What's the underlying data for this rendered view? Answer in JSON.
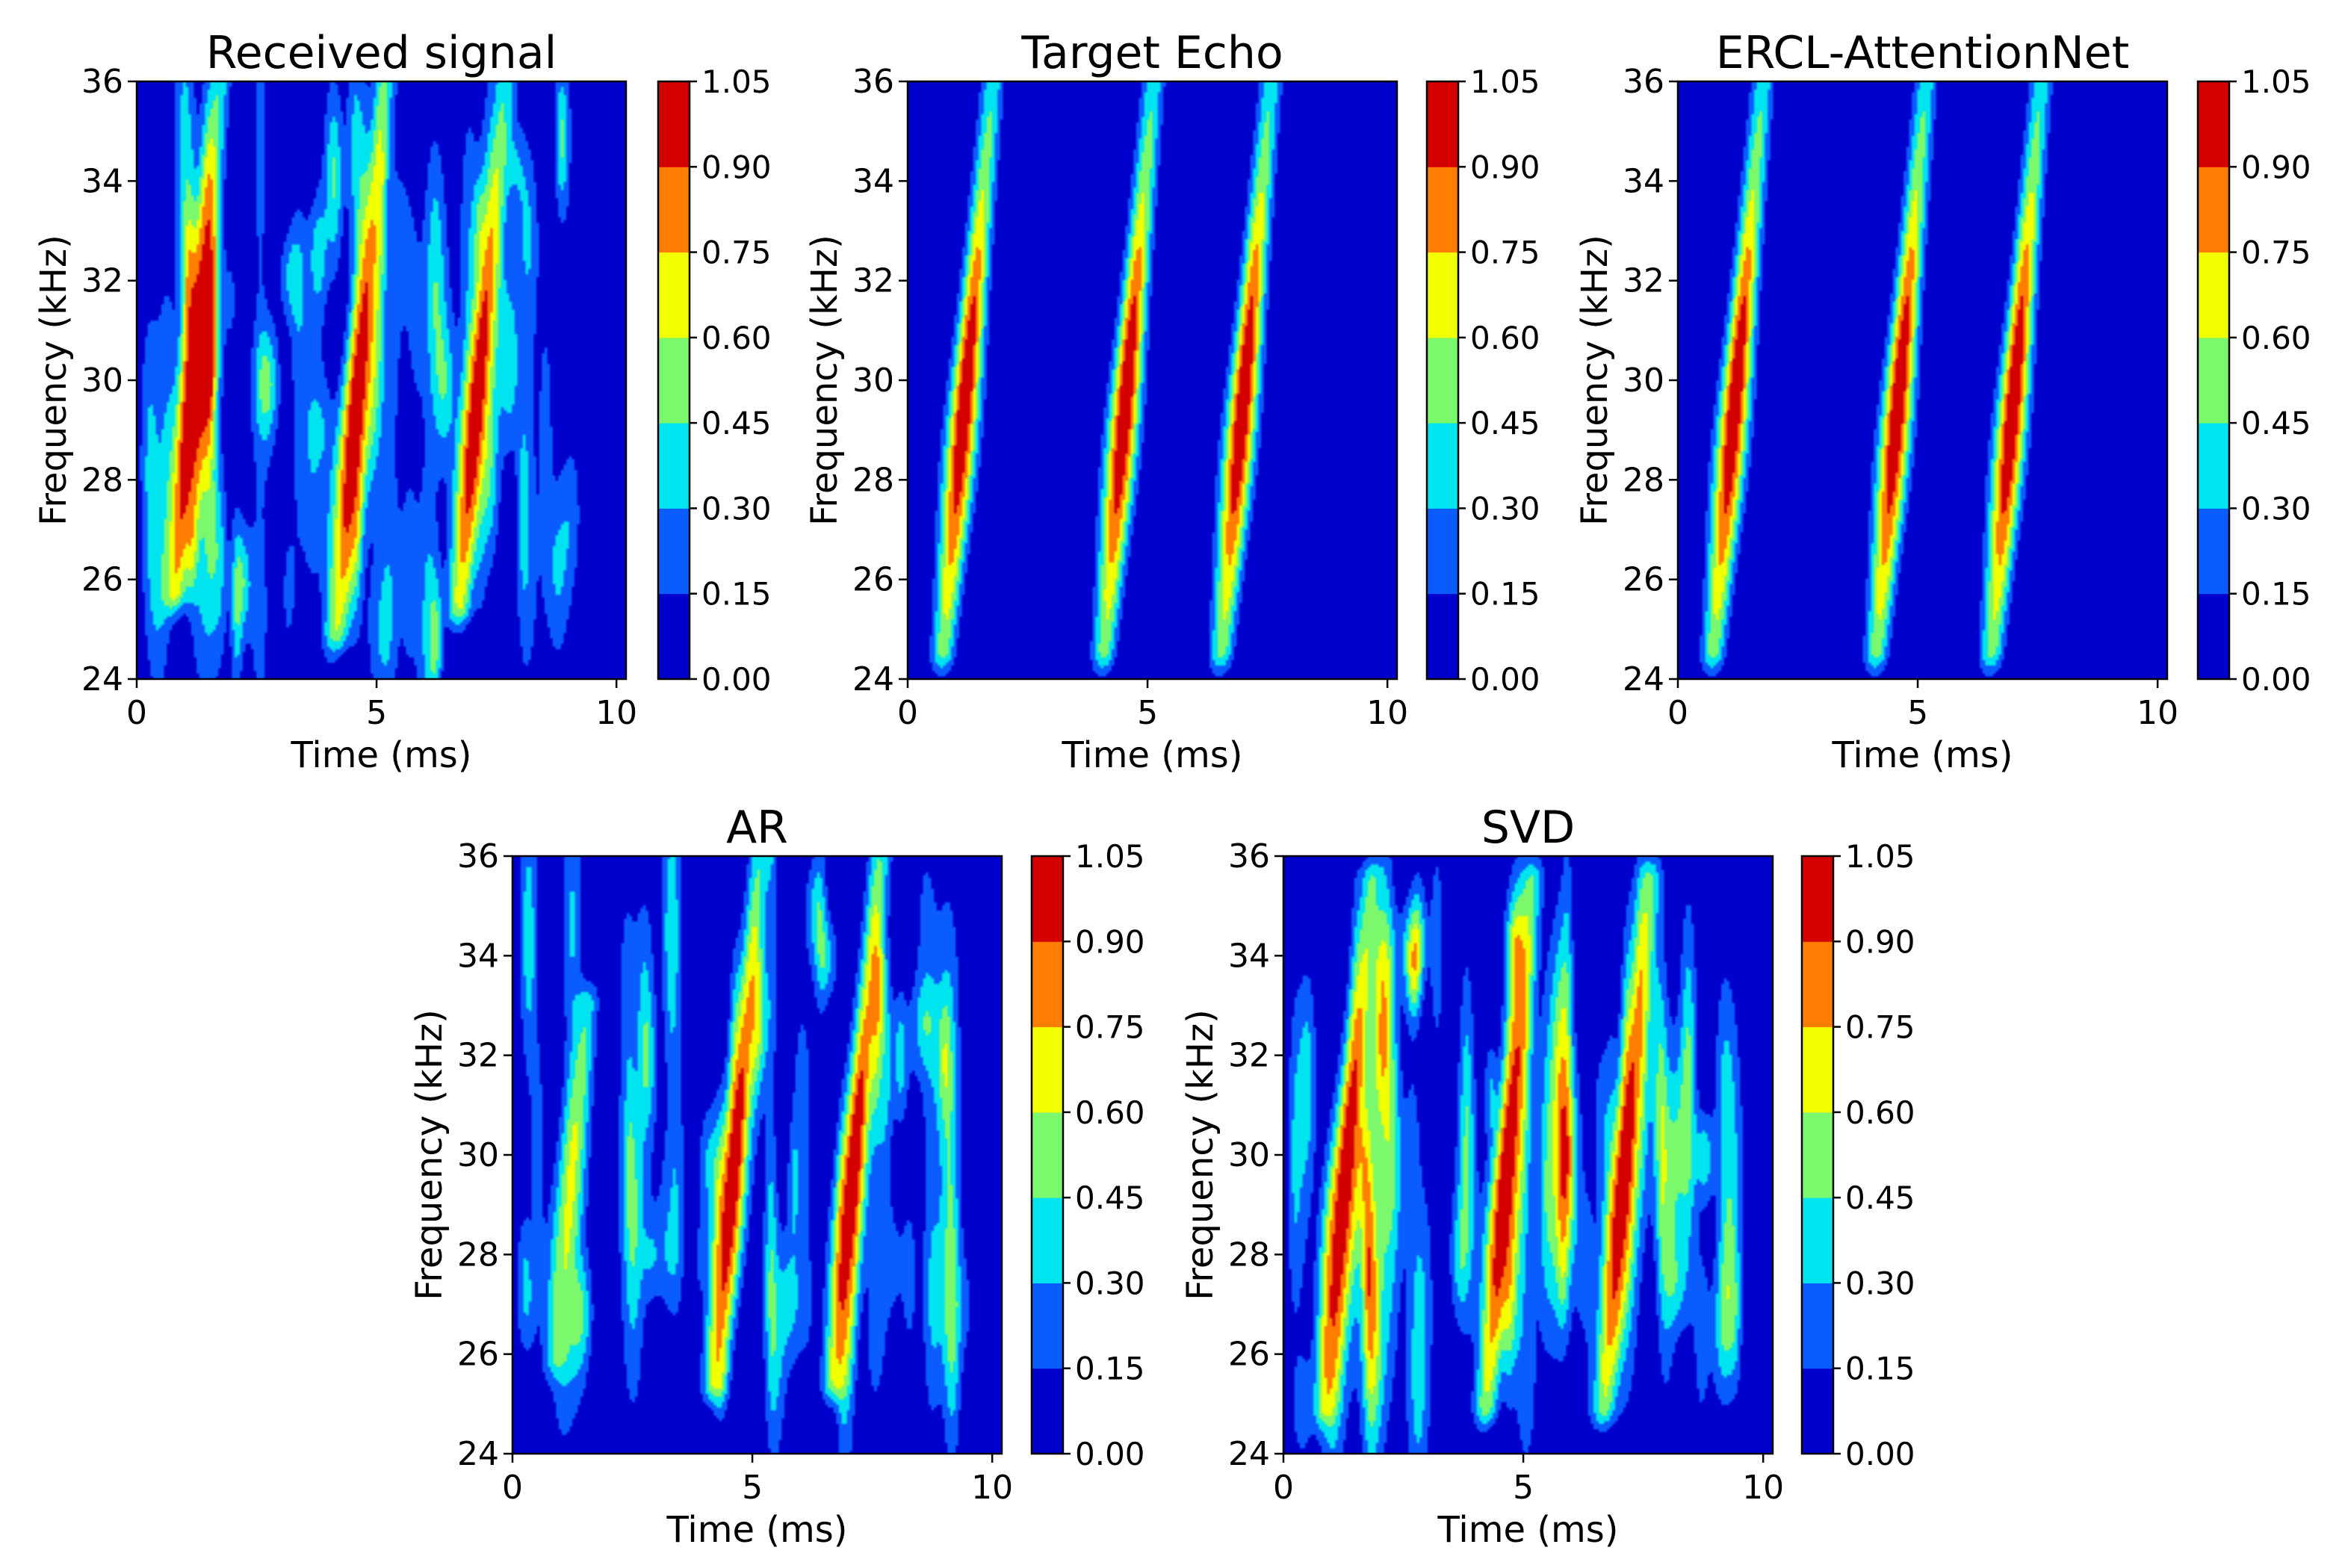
{
  "figure": {
    "panels_count": 5
  },
  "colormap": {
    "name": "jet",
    "levels": [
      0.0,
      0.15,
      0.3,
      0.45,
      0.6,
      0.75,
      0.9,
      1.05
    ],
    "band_colors": [
      "#0000cd",
      "#0a5cff",
      "#00e4f0",
      "#7cf86c",
      "#f2ff00",
      "#ff7d00",
      "#d40000"
    ]
  },
  "chart_data": [
    {
      "type": "heatmap",
      "title": "Received signal",
      "xlabel": "Time (ms)",
      "ylabel": "Frequency (kHz)",
      "xlim": [
        0,
        10.2
      ],
      "ylim": [
        24,
        36
      ],
      "xticks": [
        "0",
        "5",
        "10"
      ],
      "yticks": [
        "24",
        "26",
        "28",
        "30",
        "32",
        "34",
        "36"
      ],
      "colorbar_ticks": [
        "0.00",
        "0.15",
        "0.30",
        "0.45",
        "0.60",
        "0.75",
        "0.90",
        "1.05"
      ],
      "echoes": [
        {
          "t0": 1.0,
          "slope_ms_per_khz": 0.09,
          "fmin": 25.8,
          "fmax": 36.0,
          "peak": 1.0
        },
        {
          "t0": 4.45,
          "slope_ms_per_khz": 0.09,
          "fmin": 25.0,
          "fmax": 36.0,
          "peak": 1.0
        },
        {
          "t0": 6.95,
          "slope_ms_per_khz": 0.09,
          "fmin": 25.5,
          "fmax": 36.0,
          "peak": 1.0
        }
      ],
      "noise_level": 0.35,
      "noise_seed": 11
    },
    {
      "type": "heatmap",
      "title": "Target Echo",
      "xlabel": "Time (ms)",
      "ylabel": "Frequency (kHz)",
      "xlim": [
        0,
        10.2
      ],
      "ylim": [
        24,
        36
      ],
      "xticks": [
        "0",
        "5",
        "10"
      ],
      "yticks": [
        "24",
        "26",
        "28",
        "30",
        "32",
        "34",
        "36"
      ],
      "colorbar_ticks": [
        "0.00",
        "0.15",
        "0.30",
        "0.45",
        "0.60",
        "0.75",
        "0.90",
        "1.05"
      ],
      "echoes": [
        {
          "t0": 1.05,
          "slope_ms_per_khz": 0.09,
          "fmin": 24.6,
          "fmax": 36.0,
          "peak": 1.0
        },
        {
          "t0": 4.4,
          "slope_ms_per_khz": 0.09,
          "fmin": 24.6,
          "fmax": 36.0,
          "peak": 1.0
        },
        {
          "t0": 6.85,
          "slope_ms_per_khz": 0.09,
          "fmin": 24.6,
          "fmax": 36.0,
          "peak": 1.0
        }
      ],
      "noise_level": 0.0,
      "noise_seed": 3
    },
    {
      "type": "heatmap",
      "title": "ERCL-AttentionNet",
      "xlabel": "Time (ms)",
      "ylabel": "Frequency (kHz)",
      "xlim": [
        0,
        10.2
      ],
      "ylim": [
        24,
        36
      ],
      "xticks": [
        "0",
        "5",
        "10"
      ],
      "yticks": [
        "24",
        "26",
        "28",
        "30",
        "32",
        "34",
        "36"
      ],
      "colorbar_ticks": [
        "0.00",
        "0.15",
        "0.30",
        "0.45",
        "0.60",
        "0.75",
        "0.90",
        "1.05"
      ],
      "echoes": [
        {
          "t0": 1.05,
          "slope_ms_per_khz": 0.09,
          "fmin": 24.6,
          "fmax": 36.0,
          "peak": 1.0
        },
        {
          "t0": 4.45,
          "slope_ms_per_khz": 0.09,
          "fmin": 24.6,
          "fmax": 36.0,
          "peak": 1.0
        },
        {
          "t0": 6.85,
          "slope_ms_per_khz": 0.09,
          "fmin": 24.6,
          "fmax": 36.0,
          "peak": 1.0
        }
      ],
      "noise_level": 0.0,
      "noise_seed": 5
    },
    {
      "type": "heatmap",
      "title": "AR",
      "xlabel": "Time (ms)",
      "ylabel": "Frequency (kHz)",
      "xlim": [
        0,
        10.2
      ],
      "ylim": [
        24,
        36
      ],
      "xticks": [
        "0",
        "5",
        "10"
      ],
      "yticks": [
        "24",
        "26",
        "28",
        "30",
        "32",
        "34",
        "36"
      ],
      "colorbar_ticks": [
        "0.00",
        "0.15",
        "0.30",
        "0.45",
        "0.60",
        "0.75",
        "0.90",
        "1.05"
      ],
      "echoes": [
        {
          "t0": 1.1,
          "slope_ms_per_khz": 0.09,
          "fmin": 26.0,
          "fmax": 33.0,
          "peak": 0.55
        },
        {
          "t0": 4.45,
          "slope_ms_per_khz": 0.09,
          "fmin": 25.5,
          "fmax": 36.0,
          "peak": 1.0
        },
        {
          "t0": 6.95,
          "slope_ms_per_khz": 0.09,
          "fmin": 25.5,
          "fmax": 36.0,
          "peak": 1.0
        }
      ],
      "noise_level": 0.3,
      "noise_seed": 23
    },
    {
      "type": "heatmap",
      "title": "SVD",
      "xlabel": "Time (ms)",
      "ylabel": "Frequency (kHz)",
      "xlim": [
        0,
        10.2
      ],
      "ylim": [
        24,
        36
      ],
      "xticks": [
        "0",
        "5",
        "10"
      ],
      "yticks": [
        "24",
        "26",
        "28",
        "30",
        "32",
        "34",
        "36"
      ],
      "colorbar_ticks": [
        "0.00",
        "0.15",
        "0.30",
        "0.45",
        "0.60",
        "0.75",
        "0.90",
        "1.05"
      ],
      "echoes": [
        {
          "t0": 1.15,
          "slope_ms_per_khz": 0.09,
          "fmin": 25.0,
          "fmax": 35.5,
          "peak": 1.0
        },
        {
          "t0": 4.5,
          "slope_ms_per_khz": 0.09,
          "fmin": 25.0,
          "fmax": 35.5,
          "peak": 1.0
        },
        {
          "t0": 6.95,
          "slope_ms_per_khz": 0.09,
          "fmin": 25.0,
          "fmax": 35.5,
          "peak": 1.0
        }
      ],
      "noise_level": 0.38,
      "noise_seed": 41
    }
  ]
}
